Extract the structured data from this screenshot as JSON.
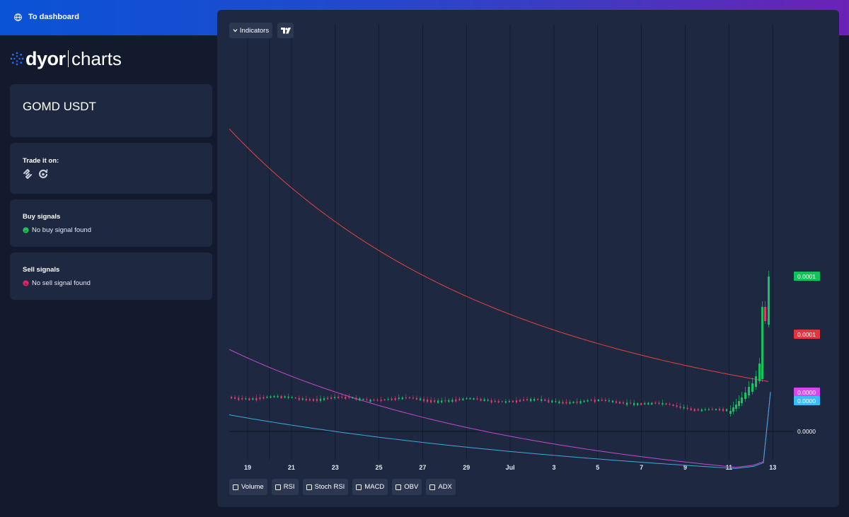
{
  "topbar": {
    "back_label": "To dashboard",
    "back_icon": "globe-icon"
  },
  "logo": {
    "word1": "dyor",
    "word2": "charts"
  },
  "pair_card": {
    "pair": "GOMD USDT"
  },
  "trade_card": {
    "title": "Trade it on:",
    "exchanges": [
      "swap-arrows-icon",
      "refresh-circle-icon"
    ]
  },
  "buy_card": {
    "title": "Buy signals",
    "status": "No buy signal found",
    "status_color": "#1fc35b"
  },
  "sell_card": {
    "title": "Sell signals",
    "status": "No sell signal found",
    "status_color": "#e0245e"
  },
  "toolbar": {
    "indicators_label": "Indicators",
    "tv_icon": "tradingview-logo-icon"
  },
  "indicator_toggles": [
    "Volume",
    "RSI",
    "Stoch RSI",
    "MACD",
    "OBV",
    "ADX"
  ],
  "chart_data": {
    "type": "line",
    "x_ticks": [
      "19",
      "21",
      "23",
      "25",
      "27",
      "29",
      "Jul",
      "3",
      "5",
      "7",
      "9",
      "11",
      "13"
    ],
    "price_labels": [
      {
        "text": "0.0001",
        "color": "#11c25a"
      },
      {
        "text": "0.0001",
        "color": "#e0373e"
      },
      {
        "text": "0.0000",
        "color": "#d946ef"
      },
      {
        "text": "0.0000",
        "color": "#38bdf8"
      },
      {
        "text": "0.0000",
        "color": ""
      }
    ],
    "series": [
      {
        "color": "#e0453f",
        "start": 0.000155,
        "end": 2.55e-05
      },
      {
        "color": "#c24ad0",
        "start": 4.2e-05,
        "end": -2e-05
      },
      {
        "color": "#3fa9de",
        "start": 8.5e-06,
        "end": -2e-05
      }
    ],
    "candle_up_color": "#13c460",
    "candle_down_color": "#e23a70",
    "grid": "vertical"
  }
}
